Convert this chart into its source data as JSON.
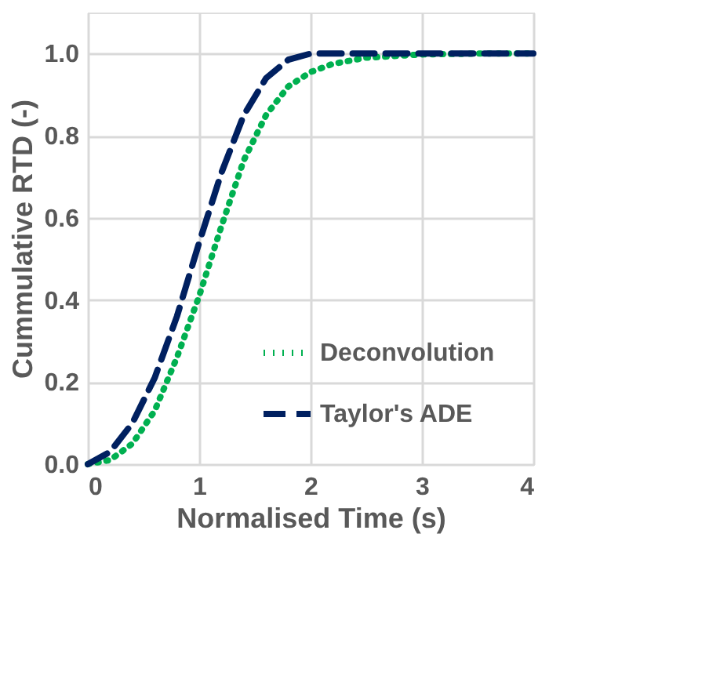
{
  "chart_data": {
    "type": "line",
    "xlabel": "Normalised Time (s)",
    "ylabel": "Cummulative RTD (-)",
    "xlim": [
      0,
      4
    ],
    "ylim": [
      0,
      1.1
    ],
    "xticks": [
      0,
      1,
      2,
      3,
      4
    ],
    "yticks": [
      {
        "value": 0,
        "label": "0.0"
      },
      0.2,
      0.4,
      0.6,
      0.8,
      {
        "value": 1,
        "label": "1.0"
      }
    ],
    "grid": true,
    "legend": "bottom right",
    "marker": "none",
    "series": [
      {
        "name": "Deconvolution",
        "color": "#00b050",
        "line_style": "dotted",
        "x": [
          0,
          0.2,
          0.4,
          0.6,
          0.8,
          1.0,
          1.2,
          1.4,
          1.6,
          1.8,
          2.0,
          2.2,
          2.5,
          3.0,
          3.5,
          4.0
        ],
        "values": [
          0,
          0.01,
          0.05,
          0.13,
          0.26,
          0.41,
          0.58,
          0.74,
          0.85,
          0.92,
          0.955,
          0.975,
          0.99,
          0.998,
          1.0,
          1.0
        ]
      },
      {
        "name": "Taylor's ADE",
        "color": "#002060",
        "line_style": "dashed",
        "x": [
          0,
          0.2,
          0.4,
          0.6,
          0.8,
          1.0,
          1.2,
          1.4,
          1.6,
          1.8,
          2.0,
          2.2,
          2.5,
          3.0,
          3.5,
          4.0
        ],
        "values": [
          0,
          0.03,
          0.1,
          0.21,
          0.36,
          0.54,
          0.71,
          0.85,
          0.94,
          0.985,
          1.0,
          1.0,
          1.0,
          1.0,
          1.0,
          1.0
        ]
      }
    ]
  }
}
